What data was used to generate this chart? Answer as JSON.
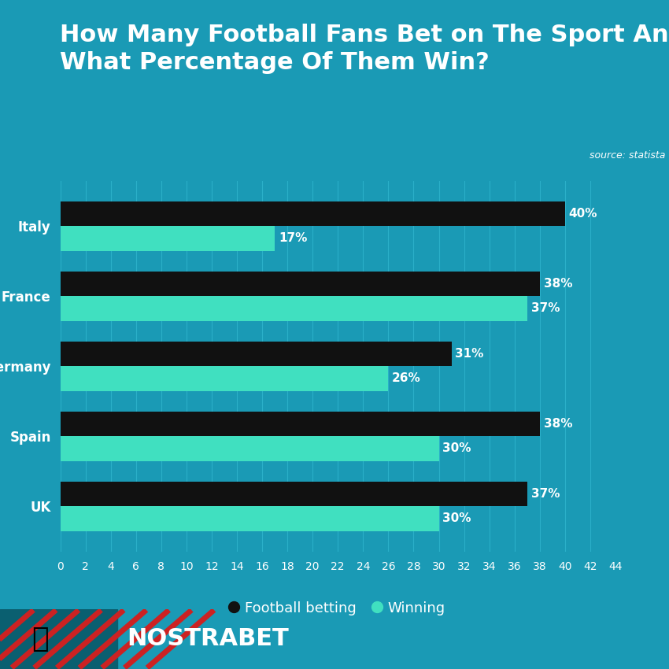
{
  "title": "How Many Football Fans Bet on The Sport And\nWhat Percentage Of Them Win?",
  "source_text": "source: statista",
  "background_color": "#1a9ab5",
  "bar_color_betting": "#111111",
  "bar_color_winning": "#40e0c0",
  "title_color": "#ffffff",
  "axis_label_color": "#ffffff",
  "grid_color": "#2bafc8",
  "countries": [
    "Italy",
    "France",
    "Germany",
    "Spain",
    "UK"
  ],
  "betting_values": [
    40,
    38,
    31,
    38,
    37
  ],
  "winning_values": [
    17,
    37,
    26,
    30,
    30
  ],
  "xlim": [
    0,
    44
  ],
  "xticks": [
    0,
    2,
    4,
    6,
    8,
    10,
    12,
    14,
    16,
    18,
    20,
    22,
    24,
    26,
    28,
    30,
    32,
    34,
    36,
    38,
    40,
    42,
    44
  ],
  "bar_height": 0.35,
  "legend_betting": "Football betting",
  "legend_winning": "Winning",
  "nostrabet_text": "NOSTRABET",
  "footer_stripe_color": "#cc2222",
  "label_fontsize": 11,
  "country_fontsize": 12,
  "xtick_fontsize": 10,
  "title_fontsize": 22
}
